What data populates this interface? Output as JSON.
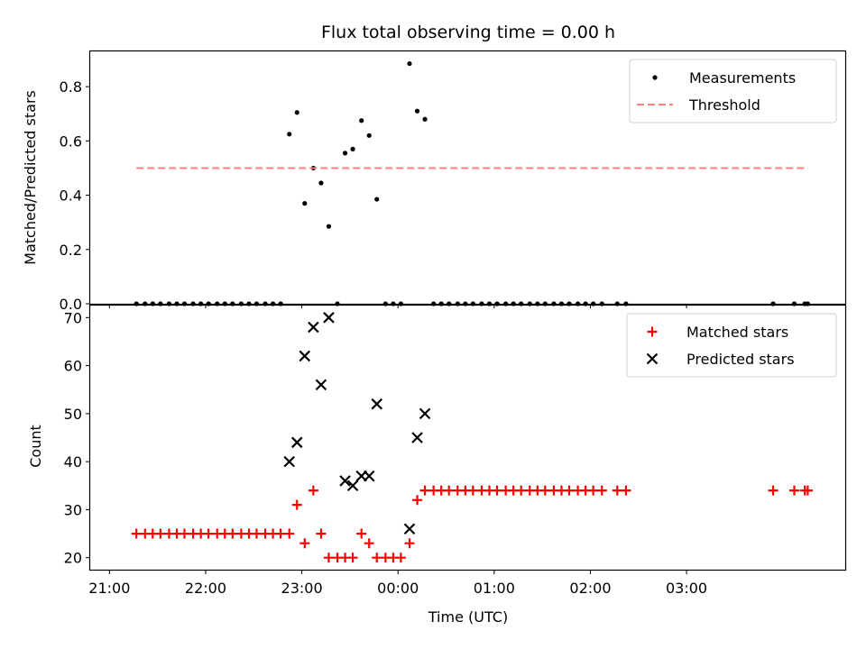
{
  "chart_data": [
    {
      "type": "scatter",
      "title": "Flux total observing time = 0.00 h",
      "xlabel": "",
      "ylabel": "Matched/Predicted stars",
      "xlim": [
        -1.2,
        6.65
      ],
      "ylim": [
        0,
        0.93
      ],
      "yticks": [
        "0.0",
        "0.2",
        "0.4",
        "0.6",
        "0.8"
      ],
      "legend_position": "top-right",
      "series": [
        {
          "name": "Measurements",
          "marker": "dot",
          "color": "#000000",
          "x": [
            -0.72,
            -0.63,
            -0.55,
            -0.47,
            -0.38,
            -0.3,
            -0.22,
            -0.13,
            -0.05,
            0.03,
            0.12,
            0.2,
            0.28,
            0.37,
            0.45,
            0.53,
            0.62,
            0.7,
            0.78,
            0.87,
            0.95,
            1.03,
            1.12,
            1.2,
            1.28,
            1.37,
            1.45,
            1.53,
            1.62,
            1.7,
            1.78,
            1.87,
            1.95,
            2.03,
            2.12,
            2.2,
            2.28,
            2.37,
            2.45,
            2.53,
            2.62,
            2.7,
            2.78,
            2.87,
            2.95,
            3.03,
            3.12,
            3.2,
            3.28,
            3.37,
            3.45,
            3.53,
            3.62,
            3.7,
            3.78,
            3.87,
            3.95,
            4.03,
            4.12,
            4.28,
            4.37,
            5.9,
            6.12,
            6.23,
            6.26
          ],
          "y": [
            0,
            0,
            0,
            0,
            0,
            0,
            0,
            0,
            0,
            0,
            0,
            0,
            0,
            0,
            0,
            0,
            0,
            0,
            0,
            0.625,
            0.705,
            0.37,
            0.5,
            0.445,
            0.285,
            0,
            0.555,
            0.57,
            0.675,
            0.62,
            0.385,
            0,
            0,
            0,
            0.885,
            0.71,
            0.68,
            0,
            0,
            0,
            0,
            0,
            0,
            0,
            0,
            0,
            0,
            0,
            0,
            0,
            0,
            0,
            0,
            0,
            0,
            0,
            0,
            0,
            0,
            0,
            0,
            0,
            0,
            0,
            0
          ]
        },
        {
          "name": "Threshold",
          "marker": "dashed-line",
          "color": "#ff8080",
          "x": [
            -0.72,
            6.26
          ],
          "y": [
            0.5,
            0.5
          ]
        }
      ]
    },
    {
      "type": "scatter",
      "title": "",
      "xlabel": "Time (UTC)",
      "ylabel": "Count",
      "xlim": [
        -1.2,
        6.65
      ],
      "ylim": [
        17.5,
        72.5
      ],
      "yticks": [
        "20",
        "30",
        "40",
        "50",
        "60",
        "70"
      ],
      "xticks": [
        {
          "value": -1,
          "label": "21:00"
        },
        {
          "value": 0,
          "label": "22:00"
        },
        {
          "value": 1,
          "label": "23:00"
        },
        {
          "value": 2,
          "label": "00:00"
        },
        {
          "value": 3,
          "label": "01:00"
        },
        {
          "value": 4,
          "label": "02:00"
        },
        {
          "value": 5,
          "label": "03:00"
        }
      ],
      "legend_position": "top-right",
      "series": [
        {
          "name": "Matched stars",
          "marker": "plus",
          "color": "#ff0000",
          "x": [
            -0.72,
            -0.63,
            -0.55,
            -0.47,
            -0.38,
            -0.3,
            -0.22,
            -0.13,
            -0.05,
            0.03,
            0.12,
            0.2,
            0.28,
            0.37,
            0.45,
            0.53,
            0.62,
            0.7,
            0.78,
            0.87,
            0.95,
            1.03,
            1.12,
            1.2,
            1.28,
            1.37,
            1.45,
            1.53,
            1.62,
            1.7,
            1.78,
            1.87,
            1.95,
            2.03,
            2.12,
            2.2,
            2.28,
            2.37,
            2.45,
            2.53,
            2.62,
            2.7,
            2.78,
            2.87,
            2.95,
            3.03,
            3.12,
            3.2,
            3.28,
            3.37,
            3.45,
            3.53,
            3.62,
            3.7,
            3.78,
            3.87,
            3.95,
            4.03,
            4.12,
            4.28,
            4.37,
            5.9,
            6.12,
            6.23,
            6.26
          ],
          "y": [
            25,
            25,
            25,
            25,
            25,
            25,
            25,
            25,
            25,
            25,
            25,
            25,
            25,
            25,
            25,
            25,
            25,
            25,
            25,
            25,
            31,
            23,
            34,
            25,
            20,
            20,
            20,
            20,
            25,
            23,
            20,
            20,
            20,
            20,
            23,
            32,
            34,
            34,
            34,
            34,
            34,
            34,
            34,
            34,
            34,
            34,
            34,
            34,
            34,
            34,
            34,
            34,
            34,
            34,
            34,
            34,
            34,
            34,
            34,
            34,
            34,
            34,
            34,
            34,
            34
          ]
        },
        {
          "name": "Predicted stars",
          "marker": "x",
          "color": "#000000",
          "x": [
            0.87,
            0.95,
            1.03,
            1.12,
            1.2,
            1.28,
            1.45,
            1.53,
            1.62,
            1.7,
            1.78,
            2.12,
            2.2,
            2.28
          ],
          "y": [
            40,
            44,
            62,
            68,
            56,
            70,
            36,
            35,
            37,
            37,
            52,
            26,
            45,
            50
          ]
        }
      ]
    }
  ]
}
